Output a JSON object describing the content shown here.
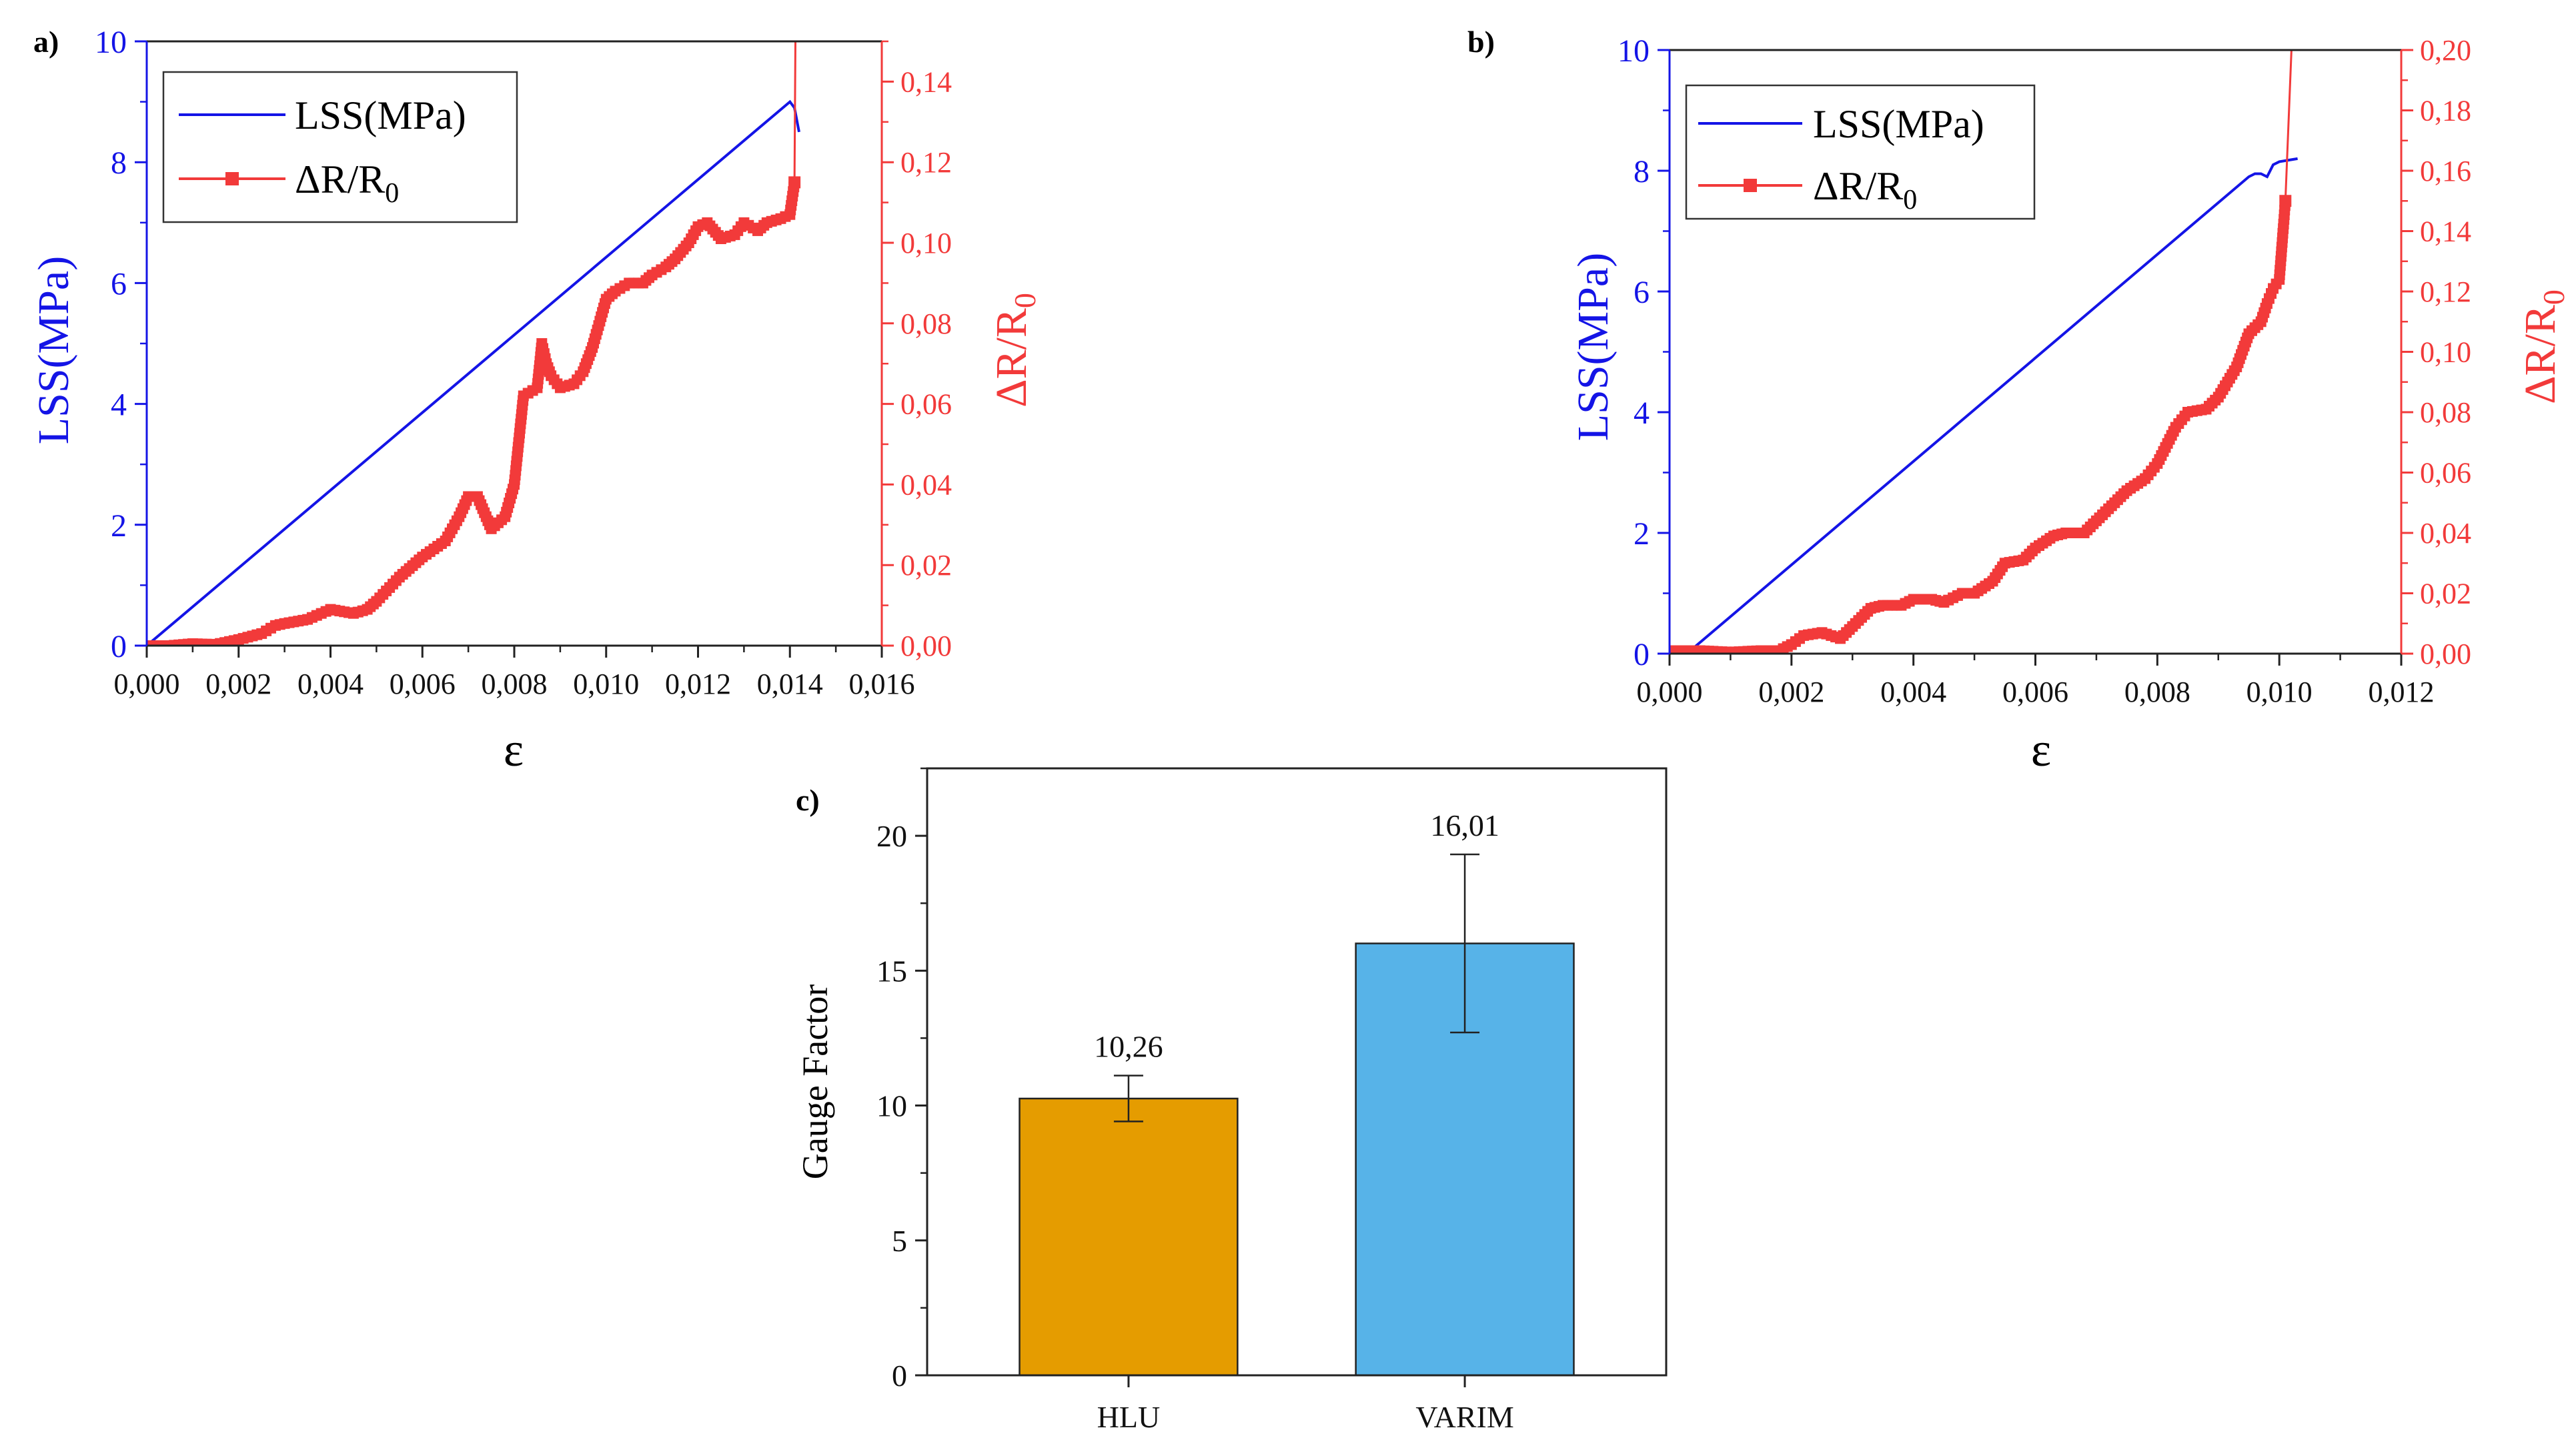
{
  "colors": {
    "lss": "#1414e6",
    "dr": "#f23a3a",
    "hlu": "#e59c00",
    "varim": "#57b3e8",
    "axis": "#222222"
  },
  "chart_data": [
    {
      "panel": "a)",
      "type": "line",
      "xlabel": "ε",
      "ylabel_left": "LSS(MPa)",
      "ylabel_right": "ΔR/R",
      "ylabel_right_sub": "0",
      "xlim": [
        0,
        0.016
      ],
      "ylim_left": [
        0,
        10
      ],
      "ylim_right": [
        0,
        0.15
      ],
      "x_ticks": [
        "0,000",
        "0,002",
        "0,004",
        "0,006",
        "0,008",
        "0,010",
        "0,012",
        "0,014",
        "0,016"
      ],
      "y_left_ticks": [
        "0",
        "2",
        "4",
        "6",
        "8",
        "10"
      ],
      "y_right_ticks": [
        "0,00",
        "0,02",
        "0,04",
        "0,06",
        "0,08",
        "0,10",
        "0,12",
        "0,14"
      ],
      "legend": {
        "placement": "top-left",
        "items": [
          {
            "label": "LSS(MPa)"
          },
          {
            "label": "ΔR/R",
            "sub": "0"
          }
        ]
      },
      "series": [
        {
          "name": "LSS(MPa)",
          "axis": "left",
          "x": [
            0,
            0.014,
            0.0141,
            0.0142
          ],
          "y": [
            0,
            9.0,
            8.9,
            8.5
          ]
        },
        {
          "name": "ΔR/R0",
          "axis": "right",
          "x": [
            0,
            0.0005,
            0.001,
            0.0015,
            0.002,
            0.0025,
            0.0028,
            0.003,
            0.0035,
            0.004,
            0.0045,
            0.0048,
            0.005,
            0.0055,
            0.006,
            0.0065,
            0.0068,
            0.007,
            0.0072,
            0.0075,
            0.0078,
            0.008,
            0.0082,
            0.0085,
            0.0086,
            0.0087,
            0.0088,
            0.009,
            0.0093,
            0.0095,
            0.0097,
            0.01,
            0.0102,
            0.0105,
            0.0108,
            0.011,
            0.0113,
            0.0115,
            0.0118,
            0.012,
            0.0122,
            0.0125,
            0.0128,
            0.013,
            0.0133,
            0.0135,
            0.0138,
            0.014,
            0.0141,
            0.01412
          ],
          "y": [
            0,
            0,
            0.0005,
            0.0003,
            0.0015,
            0.003,
            0.005,
            0.0055,
            0.0065,
            0.009,
            0.008,
            0.009,
            0.011,
            0.017,
            0.022,
            0.026,
            0.032,
            0.037,
            0.037,
            0.029,
            0.032,
            0.04,
            0.062,
            0.064,
            0.075,
            0.07,
            0.067,
            0.064,
            0.065,
            0.068,
            0.074,
            0.086,
            0.088,
            0.09,
            0.09,
            0.092,
            0.094,
            0.096,
            0.1,
            0.104,
            0.105,
            0.101,
            0.102,
            0.105,
            0.103,
            0.105,
            0.106,
            0.107,
            0.115,
            0.15
          ]
        }
      ]
    },
    {
      "panel": "b)",
      "type": "line",
      "xlabel": "ε",
      "ylabel_left": "LSS(MPa)",
      "ylabel_right": "ΔR/R",
      "ylabel_right_sub": "0",
      "xlim": [
        0,
        0.012
      ],
      "ylim_left": [
        0,
        10
      ],
      "ylim_right": [
        0,
        0.2
      ],
      "x_ticks": [
        "0,000",
        "0,002",
        "0,004",
        "0,006",
        "0,008",
        "0,010",
        "0,012"
      ],
      "y_left_ticks": [
        "0",
        "2",
        "4",
        "6",
        "8",
        "10"
      ],
      "y_right_ticks": [
        "0,00",
        "0,02",
        "0,04",
        "0,06",
        "0,08",
        "0,10",
        "0,12",
        "0,14",
        "0,16",
        "0,18",
        "0,20"
      ],
      "legend": {
        "placement": "top-left",
        "items": [
          {
            "label": "LSS(MPa)"
          },
          {
            "label": "ΔR/R",
            "sub": "0"
          }
        ]
      },
      "series": [
        {
          "name": "LSS(MPa)",
          "axis": "left",
          "x": [
            0,
            0.0002,
            0.0004,
            0.0095,
            0.0096,
            0.0097,
            0.0098,
            0.0099,
            0.01,
            0.0103
          ],
          "y": [
            0,
            0,
            0.1,
            7.9,
            7.95,
            7.95,
            7.9,
            8.1,
            8.15,
            8.2
          ]
        },
        {
          "name": "ΔR/R0",
          "axis": "right",
          "x": [
            0,
            0.0005,
            0.001,
            0.0015,
            0.0018,
            0.002,
            0.0022,
            0.0025,
            0.0028,
            0.003,
            0.0033,
            0.0035,
            0.0038,
            0.004,
            0.0043,
            0.0045,
            0.0048,
            0.005,
            0.0053,
            0.0055,
            0.0058,
            0.006,
            0.0063,
            0.0065,
            0.0068,
            0.007,
            0.0073,
            0.0075,
            0.0078,
            0.008,
            0.0083,
            0.0085,
            0.0088,
            0.009,
            0.0093,
            0.0095,
            0.0097,
            0.0098,
            0.0099,
            0.01,
            0.0101,
            0.0102
          ],
          "y": [
            0.001,
            0.001,
            0.0005,
            0.001,
            0.001,
            0.003,
            0.006,
            0.007,
            0.005,
            0.009,
            0.015,
            0.016,
            0.016,
            0.018,
            0.018,
            0.017,
            0.02,
            0.02,
            0.024,
            0.03,
            0.031,
            0.035,
            0.039,
            0.04,
            0.04,
            0.044,
            0.05,
            0.054,
            0.058,
            0.063,
            0.075,
            0.08,
            0.081,
            0.085,
            0.095,
            0.106,
            0.11,
            0.116,
            0.121,
            0.124,
            0.15,
            0.2
          ]
        }
      ]
    },
    {
      "panel": "c)",
      "type": "bar",
      "ylabel": "Gauge Factor",
      "ylim": [
        0,
        22.5
      ],
      "y_ticks": [
        "0",
        "5",
        "10",
        "15",
        "20"
      ],
      "categories": [
        "HLU",
        "VARIM"
      ],
      "values": [
        10.26,
        16.01
      ],
      "errors": [
        0.85,
        3.3
      ],
      "data_labels": [
        "10,26",
        "16,01"
      ]
    }
  ]
}
